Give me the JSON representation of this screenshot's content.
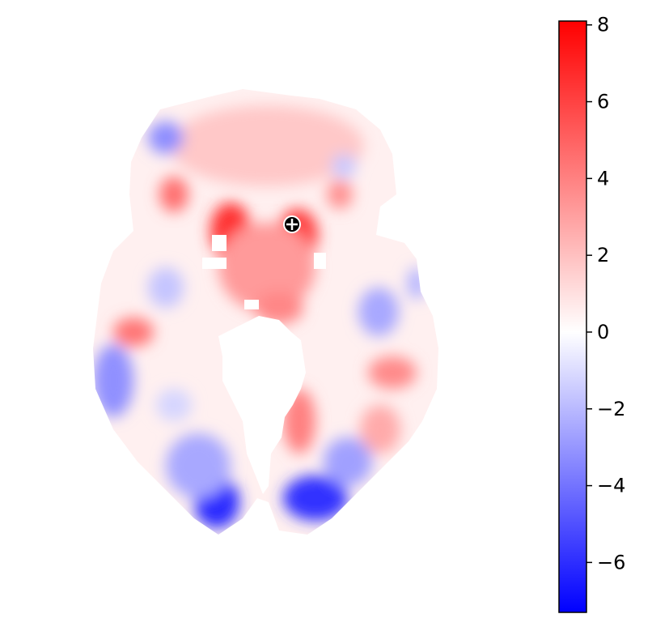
{
  "chart_data": {
    "type": "heatmap",
    "title": "",
    "xlabel": "",
    "ylabel": "",
    "description_kind": "brain-slice-statistical-map",
    "colorbar": {
      "vmin": -7.3,
      "vmax": 8.1,
      "ticks": [
        8,
        6,
        4,
        2,
        0,
        -2,
        -4,
        -6
      ],
      "tick_labels": [
        "8",
        "6",
        "4",
        "2",
        "0",
        "−2",
        "−4",
        "−6"
      ],
      "colormap": [
        "#0000ff",
        "#ffffff",
        "#ff0000"
      ]
    },
    "marker": {
      "symbol": "crosshair-circle",
      "fill": "#000000",
      "stroke": "#ffffff"
    },
    "colors": {
      "positive": "#ff0000",
      "negative": "#0000ff",
      "zero": "#ffffff"
    }
  }
}
